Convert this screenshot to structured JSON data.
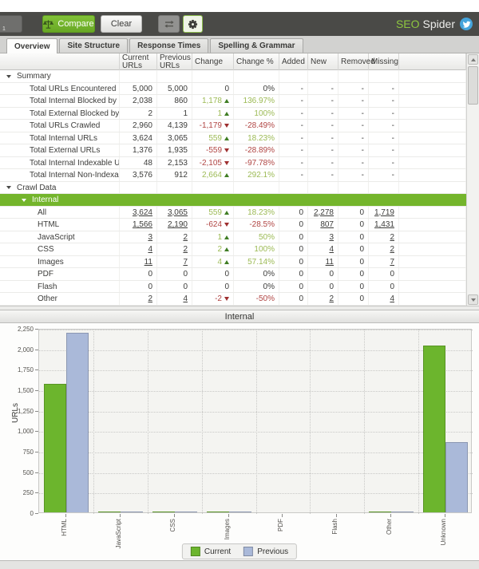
{
  "toolbar": {
    "partial_label": "1",
    "compare_label": "Compare",
    "clear_label": "Clear",
    "brand_seo": "SEO",
    "brand_spider": "Spider"
  },
  "tabs": [
    {
      "label": "Overview",
      "active": true
    },
    {
      "label": "Site Structure",
      "active": false
    },
    {
      "label": "Response Times",
      "active": false
    },
    {
      "label": "Spelling & Grammar",
      "active": false
    }
  ],
  "table": {
    "columns": [
      "",
      "Current URLs",
      "Previous URLs",
      "Change",
      "Change %",
      "Added",
      "New",
      "Removed",
      "Missing",
      ""
    ],
    "rows": [
      {
        "label": "Summary",
        "level": 0,
        "type": "group",
        "cells": []
      },
      {
        "label": "Total URLs Encountered",
        "level": 1,
        "type": "data",
        "cells": [
          {
            "t": "5,000"
          },
          {
            "t": "5,000"
          },
          {
            "t": "0"
          },
          {
            "t": "0%"
          },
          {
            "t": "-"
          },
          {
            "t": "-"
          },
          {
            "t": "-"
          },
          {
            "t": "-"
          }
        ]
      },
      {
        "label": "Total Internal Blocked by robots.txt",
        "level": 1,
        "type": "data",
        "cells": [
          {
            "t": "2,038"
          },
          {
            "t": "860"
          },
          {
            "t": "1,178",
            "s": "pos",
            "a": "up"
          },
          {
            "t": "136.97%",
            "s": "pos"
          },
          {
            "t": "-"
          },
          {
            "t": "-"
          },
          {
            "t": "-"
          },
          {
            "t": "-"
          }
        ]
      },
      {
        "label": "Total External Blocked by robots...",
        "level": 1,
        "type": "data",
        "cells": [
          {
            "t": "2"
          },
          {
            "t": "1"
          },
          {
            "t": "1",
            "s": "pos",
            "a": "up"
          },
          {
            "t": "100%",
            "s": "pos"
          },
          {
            "t": "-"
          },
          {
            "t": "-"
          },
          {
            "t": "-"
          },
          {
            "t": "-"
          }
        ]
      },
      {
        "label": "Total URLs Crawled",
        "level": 1,
        "type": "data",
        "cells": [
          {
            "t": "2,960"
          },
          {
            "t": "4,139"
          },
          {
            "t": "-1,179",
            "s": "neg",
            "a": "dn"
          },
          {
            "t": "-28.49%",
            "s": "neg"
          },
          {
            "t": "-"
          },
          {
            "t": "-"
          },
          {
            "t": "-"
          },
          {
            "t": "-"
          }
        ]
      },
      {
        "label": "Total Internal URLs",
        "level": 1,
        "type": "data",
        "cells": [
          {
            "t": "3,624"
          },
          {
            "t": "3,065"
          },
          {
            "t": "559",
            "s": "pos",
            "a": "up"
          },
          {
            "t": "18.23%",
            "s": "pos"
          },
          {
            "t": "-"
          },
          {
            "t": "-"
          },
          {
            "t": "-"
          },
          {
            "t": "-"
          }
        ]
      },
      {
        "label": "Total External URLs",
        "level": 1,
        "type": "data",
        "cells": [
          {
            "t": "1,376"
          },
          {
            "t": "1,935"
          },
          {
            "t": "-559",
            "s": "neg",
            "a": "dn"
          },
          {
            "t": "-28.89%",
            "s": "neg"
          },
          {
            "t": "-"
          },
          {
            "t": "-"
          },
          {
            "t": "-"
          },
          {
            "t": "-"
          }
        ]
      },
      {
        "label": "Total Internal Indexable URLs",
        "level": 1,
        "type": "data",
        "cells": [
          {
            "t": "48"
          },
          {
            "t": "2,153"
          },
          {
            "t": "-2,105",
            "s": "neg",
            "a": "dn"
          },
          {
            "t": "-97.78%",
            "s": "neg"
          },
          {
            "t": "-"
          },
          {
            "t": "-"
          },
          {
            "t": "-"
          },
          {
            "t": "-"
          }
        ]
      },
      {
        "label": "Total Internal Non-Indexable URLs",
        "level": 1,
        "type": "data",
        "cells": [
          {
            "t": "3,576"
          },
          {
            "t": "912"
          },
          {
            "t": "2,664",
            "s": "pos",
            "a": "up"
          },
          {
            "t": "292.1%",
            "s": "pos"
          },
          {
            "t": "-"
          },
          {
            "t": "-"
          },
          {
            "t": "-"
          },
          {
            "t": "-"
          }
        ]
      },
      {
        "label": "Crawl Data",
        "level": 0,
        "type": "group",
        "cells": []
      },
      {
        "label": "Internal",
        "level": 1,
        "type": "green-group",
        "cells": []
      },
      {
        "label": "All",
        "level": 2,
        "type": "data",
        "cells": [
          {
            "t": "3,624",
            "s": "link"
          },
          {
            "t": "3,065",
            "s": "link"
          },
          {
            "t": "559",
            "s": "pos",
            "a": "up"
          },
          {
            "t": "18.23%",
            "s": "pos"
          },
          {
            "t": "0"
          },
          {
            "t": "2,278",
            "s": "link"
          },
          {
            "t": "0"
          },
          {
            "t": "1,719",
            "s": "link"
          }
        ]
      },
      {
        "label": "HTML",
        "level": 2,
        "type": "data",
        "cells": [
          {
            "t": "1,566",
            "s": "link"
          },
          {
            "t": "2,190",
            "s": "link"
          },
          {
            "t": "-624",
            "s": "neg",
            "a": "dn"
          },
          {
            "t": "-28.5%",
            "s": "neg"
          },
          {
            "t": "0"
          },
          {
            "t": "807",
            "s": "link"
          },
          {
            "t": "0"
          },
          {
            "t": "1,431",
            "s": "link"
          }
        ]
      },
      {
        "label": "JavaScript",
        "level": 2,
        "type": "data",
        "cells": [
          {
            "t": "3",
            "s": "link"
          },
          {
            "t": "2",
            "s": "link"
          },
          {
            "t": "1",
            "s": "pos",
            "a": "up"
          },
          {
            "t": "50%",
            "s": "pos"
          },
          {
            "t": "0"
          },
          {
            "t": "3",
            "s": "link"
          },
          {
            "t": "0"
          },
          {
            "t": "2",
            "s": "link"
          }
        ]
      },
      {
        "label": "CSS",
        "level": 2,
        "type": "data",
        "cells": [
          {
            "t": "4",
            "s": "link"
          },
          {
            "t": "2",
            "s": "link"
          },
          {
            "t": "2",
            "s": "pos",
            "a": "up"
          },
          {
            "t": "100%",
            "s": "pos"
          },
          {
            "t": "0"
          },
          {
            "t": "4",
            "s": "link"
          },
          {
            "t": "0"
          },
          {
            "t": "2",
            "s": "link"
          }
        ]
      },
      {
        "label": "Images",
        "level": 2,
        "type": "data",
        "cells": [
          {
            "t": "11",
            "s": "link"
          },
          {
            "t": "7",
            "s": "link"
          },
          {
            "t": "4",
            "s": "pos",
            "a": "up"
          },
          {
            "t": "57.14%",
            "s": "pos"
          },
          {
            "t": "0"
          },
          {
            "t": "11",
            "s": "link"
          },
          {
            "t": "0"
          },
          {
            "t": "7",
            "s": "link"
          }
        ]
      },
      {
        "label": "PDF",
        "level": 2,
        "type": "data",
        "cells": [
          {
            "t": "0"
          },
          {
            "t": "0"
          },
          {
            "t": "0"
          },
          {
            "t": "0%"
          },
          {
            "t": "0"
          },
          {
            "t": "0"
          },
          {
            "t": "0"
          },
          {
            "t": "0"
          }
        ]
      },
      {
        "label": "Flash",
        "level": 2,
        "type": "data",
        "cells": [
          {
            "t": "0"
          },
          {
            "t": "0"
          },
          {
            "t": "0"
          },
          {
            "t": "0%"
          },
          {
            "t": "0"
          },
          {
            "t": "0"
          },
          {
            "t": "0"
          },
          {
            "t": "0"
          }
        ]
      },
      {
        "label": "Other",
        "level": 2,
        "type": "data",
        "cells": [
          {
            "t": "2",
            "s": "link"
          },
          {
            "t": "4",
            "s": "link"
          },
          {
            "t": "-2",
            "s": "neg",
            "a": "dn"
          },
          {
            "t": "-50%",
            "s": "neg"
          },
          {
            "t": "0"
          },
          {
            "t": "2",
            "s": "link"
          },
          {
            "t": "0"
          },
          {
            "t": "4",
            "s": "link"
          }
        ]
      }
    ]
  },
  "chart_data": {
    "type": "bar",
    "title": "Internal",
    "categories": [
      "HTML",
      "JavaScript",
      "CSS",
      "Images",
      "PDF",
      "Flash",
      "Other",
      "Unknown"
    ],
    "series": [
      {
        "name": "Current",
        "color": "#6cb52d",
        "values": [
          1566,
          3,
          4,
          11,
          0,
          0,
          2,
          2038
        ]
      },
      {
        "name": "Previous",
        "color": "#aab9d9",
        "values": [
          2190,
          2,
          2,
          7,
          0,
          0,
          4,
          860
        ]
      }
    ],
    "xlabel": "",
    "ylabel": "URLs",
    "ylim": [
      0,
      2250
    ],
    "ytick_step": 250,
    "yticks": [
      "2,250",
      "2,000",
      "1,750",
      "1,500",
      "1,250",
      "1,000",
      "750",
      "500",
      "250",
      "0"
    ],
    "grid": true,
    "legend_position": "bottom"
  },
  "colors": {
    "accent_green": "#74b52c",
    "positive_text": "#9cba54",
    "negative_text": "#b04543",
    "toolbar_bg": "#4a4a47",
    "twitter_blue": "#45a4dc"
  }
}
